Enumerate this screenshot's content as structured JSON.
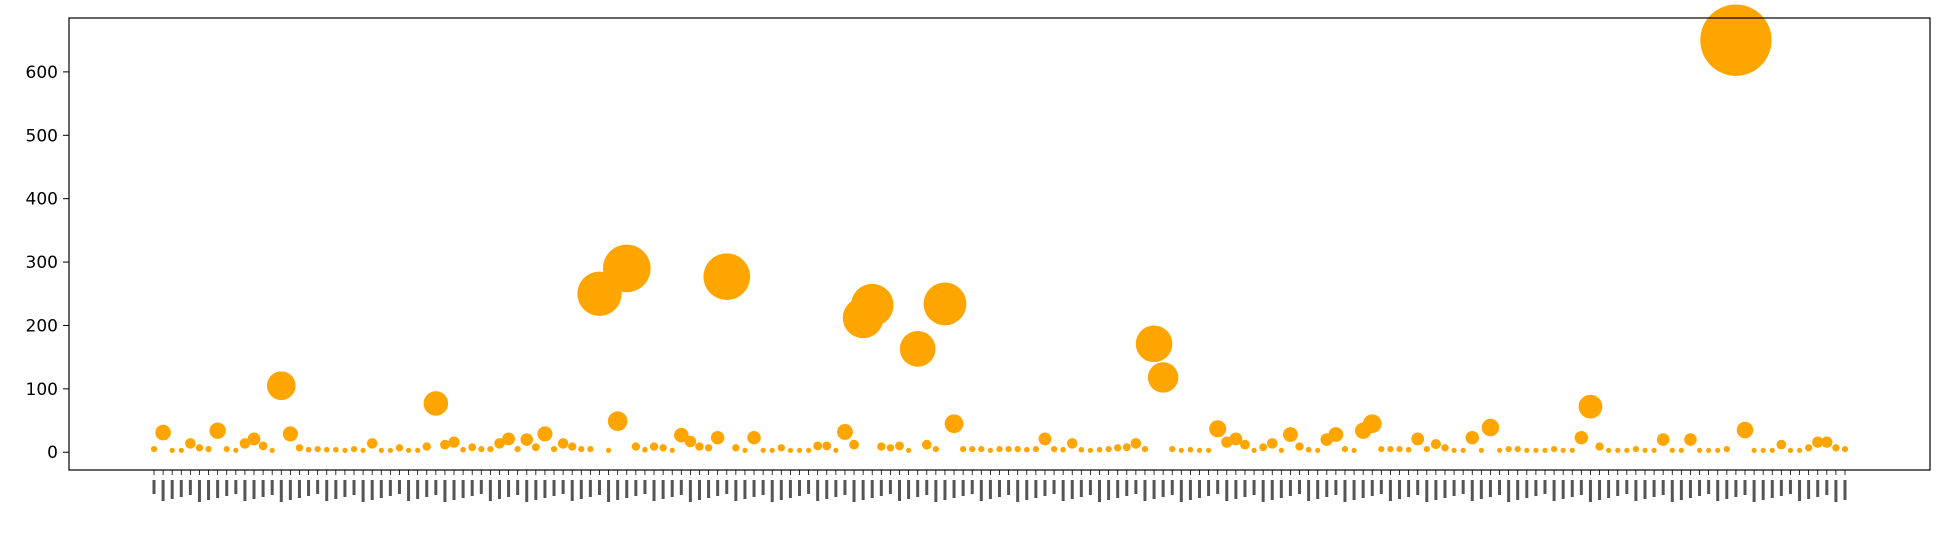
{
  "chart_data": {
    "type": "scatter",
    "title": "",
    "xlabel": "",
    "ylabel": "",
    "ylim": [
      -28,
      685
    ],
    "yticks": [
      "0",
      "100",
      "200",
      "300",
      "400",
      "500",
      "600"
    ],
    "grid": false,
    "legend": "none",
    "colors": {
      "marker": "#ffa500",
      "axes": "#000000",
      "background": "#ffffff"
    },
    "x_tick_labels_note": "tiny rotated category labels (Arabic-script words), unreadable at this resolution",
    "series": [
      {
        "values": [
          5,
          31,
          3,
          3,
          14,
          7,
          5,
          34,
          5,
          3,
          14,
          21,
          10,
          3,
          105,
          29,
          7,
          4,
          5,
          4,
          4,
          3,
          5,
          3,
          14,
          3,
          3,
          7,
          3,
          3,
          9,
          77,
          12,
          16,
          4,
          8,
          5,
          5,
          14,
          21,
          5,
          20,
          8,
          29,
          5,
          14,
          9,
          5,
          5,
          250,
          3,
          49,
          290,
          9,
          4,
          9,
          7,
          3,
          27,
          17,
          9,
          7,
          23,
          277,
          7,
          3,
          23,
          3,
          3,
          7,
          3,
          3,
          3,
          10,
          10,
          3,
          32,
          12,
          212,
          232,
          9,
          7,
          10,
          3,
          163,
          12,
          5,
          234,
          45,
          5,
          5,
          5,
          3,
          5,
          5,
          5,
          4,
          5,
          21,
          5,
          4,
          14,
          4,
          3,
          4,
          5,
          7,
          8,
          14,
          5,
          171,
          118,
          5,
          3,
          4,
          3,
          3,
          37,
          16,
          21,
          12,
          3,
          8,
          14,
          3,
          28,
          9,
          4,
          3,
          20,
          28,
          5,
          3,
          34,
          45,
          5,
          5,
          5,
          4,
          21,
          5,
          13,
          7,
          3,
          3,
          23,
          3,
          39,
          3,
          5,
          5,
          3,
          3,
          3,
          5,
          3,
          3,
          23,
          72,
          9,
          3,
          3,
          3,
          5,
          3,
          3,
          20,
          3,
          3,
          20,
          3,
          3,
          3,
          5,
          650,
          35,
          3,
          3,
          3,
          12,
          3,
          3,
          7,
          16,
          16,
          7,
          5
        ]
      }
    ]
  }
}
